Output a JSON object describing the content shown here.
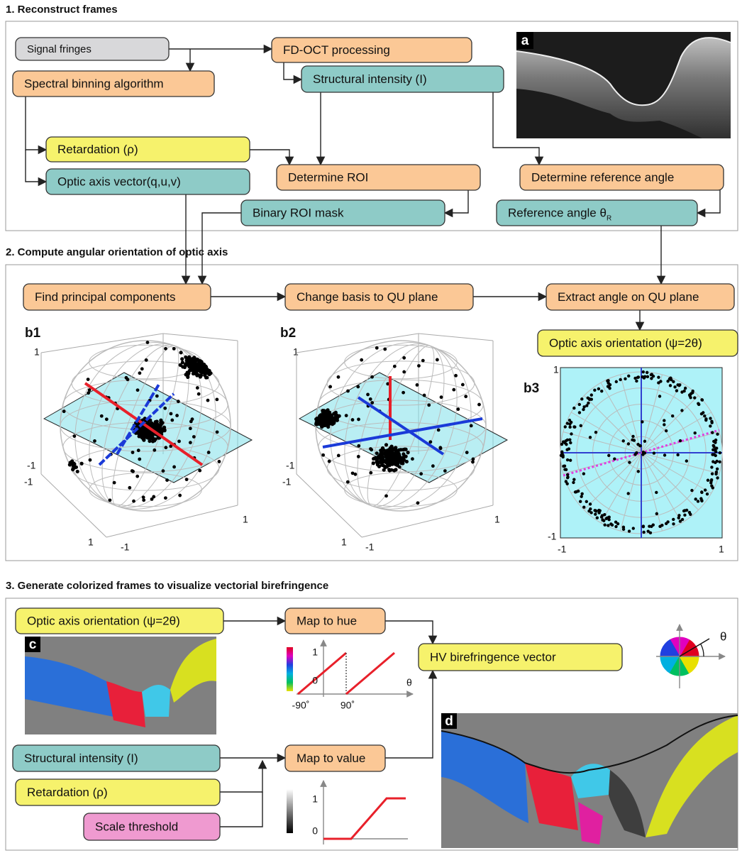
{
  "sections": [
    {
      "title": "1. Reconstruct frames"
    },
    {
      "title": "2. Compute angular orientation of optic axis"
    },
    {
      "title": "3. Generate colorized frames to visualize vectorial birefringence"
    }
  ],
  "nodes": [
    {
      "label": "Signal fringes"
    },
    {
      "label": "FD-OCT processing"
    },
    {
      "label": "Spectral binning algorithm"
    },
    {
      "label": "Structural intensity (I)"
    },
    {
      "label": "Retardation (ρ)"
    },
    {
      "label": "Optic axis vector(q,u,v)"
    },
    {
      "label": "Determine ROI"
    },
    {
      "label": "Determine reference angle"
    },
    {
      "label": "Binary ROI mask"
    },
    {
      "label": "Reference angle θ",
      "subscript": "R"
    },
    {
      "label": "Find principal components"
    },
    {
      "label": "Change basis to QU plane"
    },
    {
      "label": "Extract angle on QU plane"
    },
    {
      "label": "Optic axis orientation (ψ=2θ)"
    },
    {
      "label": "Optic axis orientation (ψ=2θ)"
    },
    {
      "label": "Map to hue"
    },
    {
      "label": "HV birefringence vector"
    },
    {
      "label": "Structural intensity (I)"
    },
    {
      "label": "Map to value"
    },
    {
      "label": "Retardation (ρ)"
    },
    {
      "label": "Scale threshold"
    }
  ],
  "panels": [
    {
      "label": "a"
    },
    {
      "label": "b1",
      "ticks": [
        "1",
        "-1",
        "-1",
        "1",
        "1",
        "-1"
      ]
    },
    {
      "label": "b2",
      "ticks": [
        "1",
        "-1",
        "-1",
        "1",
        "1",
        "-1"
      ]
    },
    {
      "label": "b3",
      "ticks": [
        "1",
        "-1",
        "-1",
        "1"
      ]
    },
    {
      "label": "c"
    },
    {
      "label": "d"
    }
  ],
  "hue_chart": {
    "yticks": [
      "1",
      "0"
    ],
    "xticks": [
      "-90˚",
      "90˚"
    ],
    "xlabel": "θ"
  },
  "value_chart": {
    "yticks": [
      "1",
      "0"
    ]
  },
  "color_wheel": {
    "label": "θ"
  }
}
